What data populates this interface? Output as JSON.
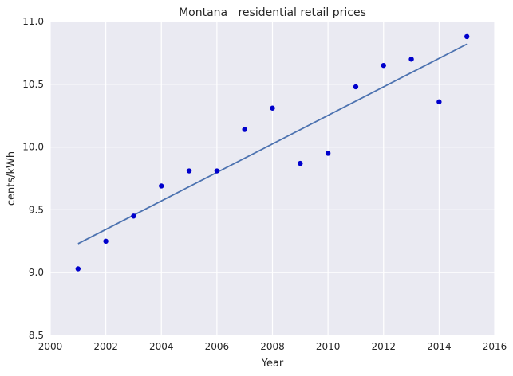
{
  "chart_data": {
    "type": "scatter",
    "title": "Montana   residential retail prices",
    "xlabel": "Year",
    "ylabel": "cents/kWh",
    "xlim": [
      2000,
      2016
    ],
    "ylim": [
      8.5,
      11.0
    ],
    "xticks": [
      2000,
      2002,
      2004,
      2006,
      2008,
      2010,
      2012,
      2014,
      2016
    ],
    "yticks": [
      8.5,
      9.0,
      9.5,
      10.0,
      10.5,
      11.0
    ],
    "grid": true,
    "series": [
      {
        "kind": "scatter",
        "color": "#0000cc",
        "x": [
          2001,
          2002,
          2003,
          2004,
          2005,
          2006,
          2007,
          2008,
          2009,
          2010,
          2011,
          2012,
          2013,
          2014,
          2015
        ],
        "y": [
          9.03,
          9.25,
          9.45,
          9.69,
          9.81,
          9.81,
          10.14,
          10.31,
          9.87,
          9.95,
          10.48,
          10.65,
          10.7,
          10.36,
          10.88
        ]
      },
      {
        "kind": "line",
        "color": "#4c72b0",
        "x": [
          2001,
          2015
        ],
        "y": [
          9.23,
          10.82
        ]
      }
    ],
    "colors": {
      "plot_background": "#eaeaf2",
      "grid": "#ffffff"
    }
  }
}
